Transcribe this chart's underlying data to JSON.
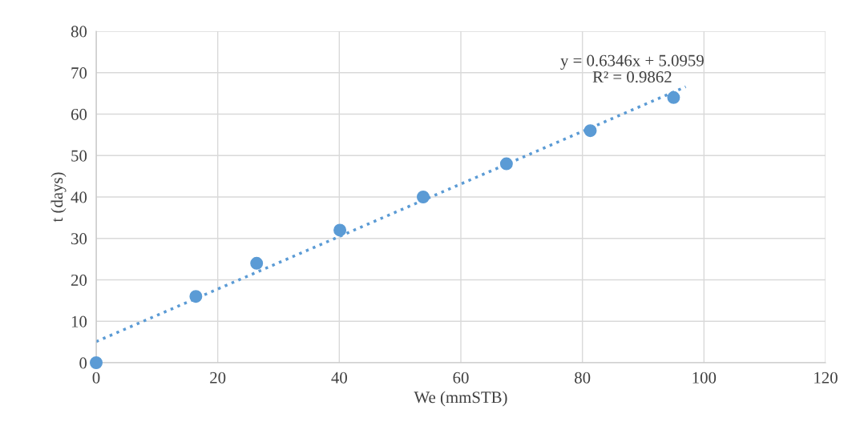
{
  "chart_data": {
    "type": "scatter",
    "xlabel": "We (mmSTB)",
    "ylabel": "t (days)",
    "series": [
      {
        "color": "#5b9bd5",
        "marker": "circle",
        "x": [
          0,
          16.4,
          26.4,
          40.1,
          53.8,
          67.5,
          81.3,
          95.0
        ],
        "values": [
          0,
          16,
          24,
          32,
          40,
          48,
          56,
          64
        ]
      },
      {
        "type": "line",
        "color": "#5b9bd5",
        "line_style": "dotted",
        "marker": "none",
        "x": [
          0,
          97
        ],
        "values": [
          5.1,
          66.6
        ]
      }
    ],
    "annotations": [
      "y = 0.6346x + 5.0959\nR² = 0.9862"
    ],
    "xlim": [
      0,
      120
    ],
    "xticks": [
      0,
      20,
      40,
      60,
      80,
      100,
      120
    ],
    "ylim": [
      0,
      80
    ],
    "yticks": [
      0,
      10,
      20,
      30,
      40,
      50,
      60,
      70,
      80
    ],
    "grid": true,
    "legend": false
  }
}
